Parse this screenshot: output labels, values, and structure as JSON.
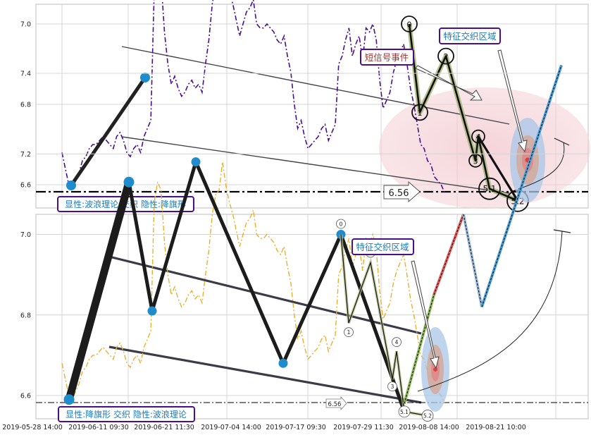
{
  "chart_data": [
    {
      "type": "line",
      "ylim": [
        6.47,
        7.5
      ],
      "yticks": [
        6.6,
        6.8,
        7.0,
        7.2,
        7.4
      ],
      "series": [
        {
          "values": [
            6.68,
            6.64,
            6.6,
            6.59,
            6.61,
            6.63,
            6.66,
            6.67,
            6.69,
            6.7,
            6.7,
            6.71,
            6.72,
            6.71,
            6.7,
            6.69,
            6.72,
            6.73,
            6.71,
            6.68,
            6.67,
            6.69,
            6.7,
            6.68,
            6.72,
            6.74,
            6.76,
            7.08,
            7.13,
            7.11,
            6.98,
            6.9,
            6.85,
            6.87,
            6.84,
            6.82,
            6.83,
            6.85,
            6.86,
            6.84,
            6.85,
            6.83,
            6.9,
            6.96,
            7.05,
            7.1,
            7.11,
            7.18,
            7.12,
            7.08,
            7.05,
            7.01,
            6.97,
            7.0,
            7.03,
            7.04,
            7.06,
            7.0,
            6.99,
            6.99,
            7.0,
            6.99,
            6.98,
            6.96,
            6.95,
            6.97,
            6.92,
            6.88,
            6.8,
            6.74,
            6.76,
            6.72,
            6.69,
            6.7,
            6.71,
            6.72,
            6.74,
            6.75,
            6.71,
            6.73,
            6.75,
            6.9,
            6.92,
            6.96,
            6.99,
            6.92,
            6.95,
            6.97,
            6.91,
            6.99,
            6.98,
            7.0,
            6.96,
            6.86,
            6.79,
            6.81,
            6.83,
            6.88,
            6.91,
            6.93,
            6.95,
            6.9,
            6.84,
            6.8,
            6.75,
            6.7,
            6.69,
            6.66,
            6.65,
            6.62,
            6.61,
            6.6,
            6.58
          ]
        }
      ],
      "wave_points": [
        {
          "label": "0",
          "value": 7.0
        },
        {
          "label": "1",
          "value": 6.78
        },
        {
          "label": "2",
          "value": 6.92
        },
        {
          "label": "3",
          "value": 6.66
        },
        {
          "label": "4",
          "value": 6.72
        },
        {
          "label": "5.1",
          "value": 6.59
        },
        {
          "label": "5.2",
          "value": 6.56
        }
      ],
      "price_marker": "6.56",
      "annotations": {
        "short_signal": "短信号事件",
        "feature_zone": "特征交织区域",
        "caption": "显性:波浪理论 交织 隐性:降旗形"
      }
    },
    {
      "type": "line",
      "ylim": [
        6.55,
        7.5
      ],
      "yticks": [
        6.6,
        6.8,
        7.0,
        7.2,
        7.4
      ],
      "xtick_labels": [
        "2019-05-28 14:00",
        "2019-06-11 09:30",
        "2019-06-21 11:30",
        "2019-07-04 14:00",
        "2019-07-17 09:30",
        "2019-07-29 11:30",
        "2019-08-08 14:00",
        "2019-08-21 10:00"
      ],
      "series": [
        {
          "values": [
            6.68,
            6.64,
            6.6,
            6.59,
            6.61,
            6.63,
            6.66,
            6.67,
            6.69,
            6.7,
            6.7,
            6.71,
            6.72,
            6.71,
            6.7,
            6.69,
            6.72,
            6.73,
            6.71,
            6.68,
            6.67,
            6.69,
            6.7,
            6.68,
            6.72,
            6.74,
            6.76,
            7.08,
            7.13,
            7.11,
            6.98,
            6.9,
            6.85,
            6.87,
            6.84,
            6.82,
            6.83,
            6.85,
            6.86,
            6.84,
            6.85,
            6.83,
            6.9,
            6.96,
            7.05,
            7.1,
            7.11,
            7.18,
            7.12,
            7.08,
            7.05,
            7.01,
            6.97,
            7.0,
            7.03,
            7.04,
            7.06,
            7.0,
            6.99,
            6.99,
            7.0,
            6.99,
            6.98,
            6.96,
            6.95,
            6.97,
            6.92,
            6.88,
            6.8,
            6.74,
            6.76,
            6.72,
            6.69,
            6.7,
            6.71,
            6.72,
            6.74,
            6.75,
            6.71,
            6.73,
            6.75,
            6.9,
            6.92,
            6.96,
            6.99,
            6.92,
            6.95,
            6.97,
            6.91,
            6.99,
            6.98,
            7.0,
            6.96,
            6.86,
            6.79,
            6.81,
            6.83,
            6.88,
            6.91,
            6.93,
            6.95,
            6.9,
            6.84,
            6.8,
            6.75,
            6.7,
            6.69,
            6.66,
            6.65,
            6.62,
            6.61,
            6.6,
            6.58
          ]
        }
      ],
      "pattern_points": [
        6.59,
        7.13,
        6.81,
        7.18,
        6.68,
        7.0,
        6.56
      ],
      "wave_points": [
        {
          "label": "0",
          "value": 7.0
        },
        {
          "label": "1",
          "value": 6.78
        },
        {
          "label": "2",
          "value": 6.93
        },
        {
          "label": "3",
          "value": 6.64
        },
        {
          "label": "4",
          "value": 6.71
        },
        {
          "label": "5.1",
          "value": 6.56
        },
        {
          "label": "5.2",
          "value": 6.55
        }
      ],
      "projection": [
        6.58,
        6.85,
        7.05,
        6.82,
        7.42
      ],
      "price_marker": "6.56",
      "annotations": {
        "feature_zone": "特征交织区域",
        "caption": "显性:降旗形 交织 隐性:波浪理论"
      }
    }
  ]
}
